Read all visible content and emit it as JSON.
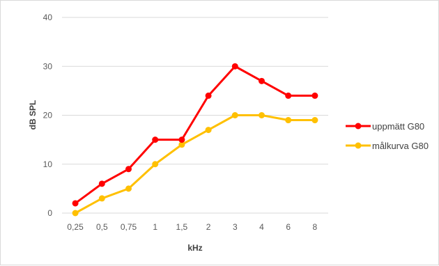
{
  "chart_data": {
    "type": "line",
    "title": "",
    "xlabel": "kHz",
    "ylabel": "dB SPL",
    "categories": [
      "0,25",
      "0,5",
      "0,75",
      "1",
      "1,5",
      "2",
      "3",
      "4",
      "6",
      "8"
    ],
    "ylim": [
      0,
      40
    ],
    "yticks": [
      0,
      10,
      20,
      30,
      40
    ],
    "grid": true,
    "legend_position": "right",
    "series": [
      {
        "name": "uppmätt G80",
        "color": "#ff0000",
        "values": [
          2,
          6,
          9,
          15,
          15,
          24,
          30,
          27,
          24,
          24
        ]
      },
      {
        "name": "målkurva G80",
        "color": "#ffc000",
        "values": [
          0,
          3,
          5,
          10,
          14,
          17,
          20,
          20,
          19,
          19
        ]
      }
    ]
  }
}
